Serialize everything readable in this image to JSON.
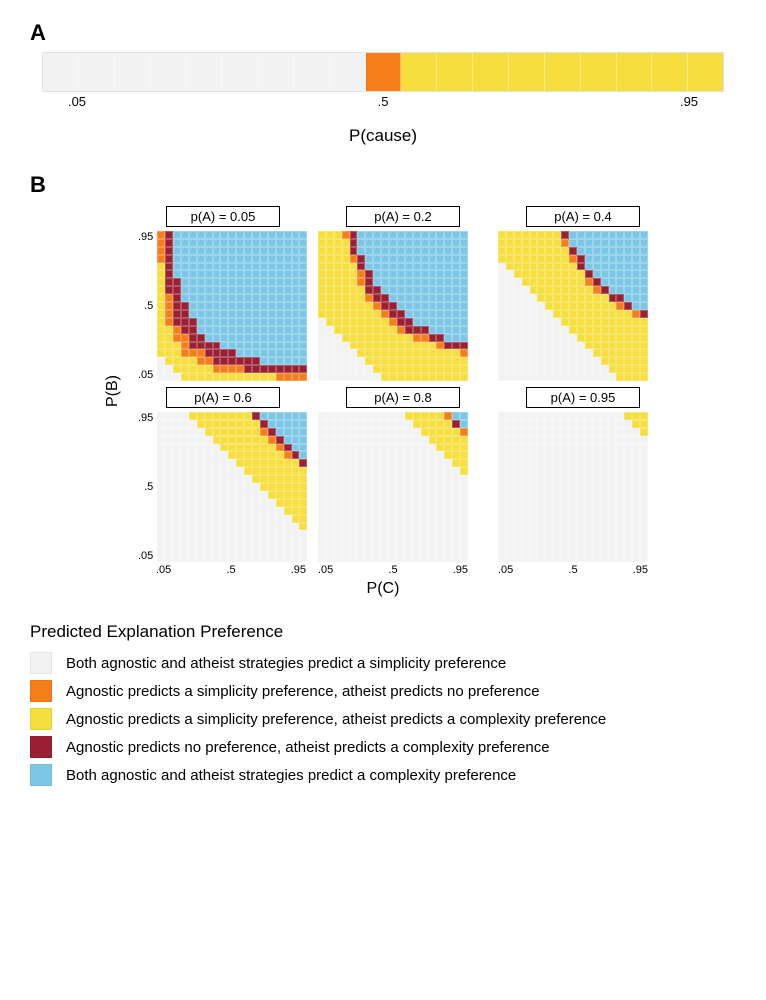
{
  "colors": {
    "both_simplicity": "#f2f2f2",
    "agn_simp_ath_none": "#f77d1b",
    "agn_simp_ath_complex": "#f5de3d",
    "agn_none_ath_complex": "#9a1f33",
    "both_complexity": "#7dc7e6",
    "grid_border": "#e0e0e0"
  },
  "panelA": {
    "label": "A",
    "n_cells": 19,
    "xlabel": "P(cause)",
    "ticks": [
      ".05",
      ".5",
      ".95"
    ],
    "tick_positions_pct": [
      5,
      50,
      95
    ],
    "cell_categories": [
      "both_simplicity",
      "both_simplicity",
      "both_simplicity",
      "both_simplicity",
      "both_simplicity",
      "both_simplicity",
      "both_simplicity",
      "both_simplicity",
      "both_simplicity",
      "agn_simp_ath_none",
      "agn_simp_ath_complex",
      "agn_simp_ath_complex",
      "agn_simp_ath_complex",
      "agn_simp_ath_complex",
      "agn_simp_ath_complex",
      "agn_simp_ath_complex",
      "agn_simp_ath_complex",
      "agn_simp_ath_complex",
      "agn_simp_ath_complex"
    ]
  },
  "panelB": {
    "label": "B",
    "ylabel": "P(B)",
    "xlabel": "P(C)",
    "axis_ticks": [
      ".05",
      ".5",
      ".95"
    ],
    "grid_n": 19,
    "facets": [
      {
        "title": "p(A) = 0.05",
        "pA": 0.05
      },
      {
        "title": "p(A) = 0.2",
        "pA": 0.2
      },
      {
        "title": "p(A) = 0.4",
        "pA": 0.4
      },
      {
        "title": "p(A) = 0.6",
        "pA": 0.6
      },
      {
        "title": "p(A) = 0.8",
        "pA": 0.8
      },
      {
        "title": "p(A) = 0.95",
        "pA": 0.95
      }
    ],
    "thresholds": {
      "comment": "Category boundaries approximated from figure. product = pA*pB*pC. complexity when product > hi; transitional darkred / orange near boundary; yellow band between simplicity_limit and hi; grey when below simplicity_limit.",
      "simplicity_limit_expr": "pA",
      "yellow_width": 0.1,
      "darkred_inner": 0.02,
      "orange_outer": 0.02
    }
  },
  "legend": {
    "title": "Predicted Explanation Preference",
    "items": [
      {
        "key": "both_simplicity",
        "label": "Both agnostic and atheist strategies predict a simplicity preference"
      },
      {
        "key": "agn_simp_ath_none",
        "label": "Agnostic predicts a simplicity preference, atheist predicts no preference"
      },
      {
        "key": "agn_simp_ath_complex",
        "label": "Agnostic predicts a simplicity preference, atheist predicts a complexity preference"
      },
      {
        "key": "agn_none_ath_complex",
        "label": "Agnostic predicts no preference, atheist predicts a complexity preference"
      },
      {
        "key": "both_complexity",
        "label": "Both agnostic and atheist strategies predict a complexity preference"
      }
    ]
  }
}
